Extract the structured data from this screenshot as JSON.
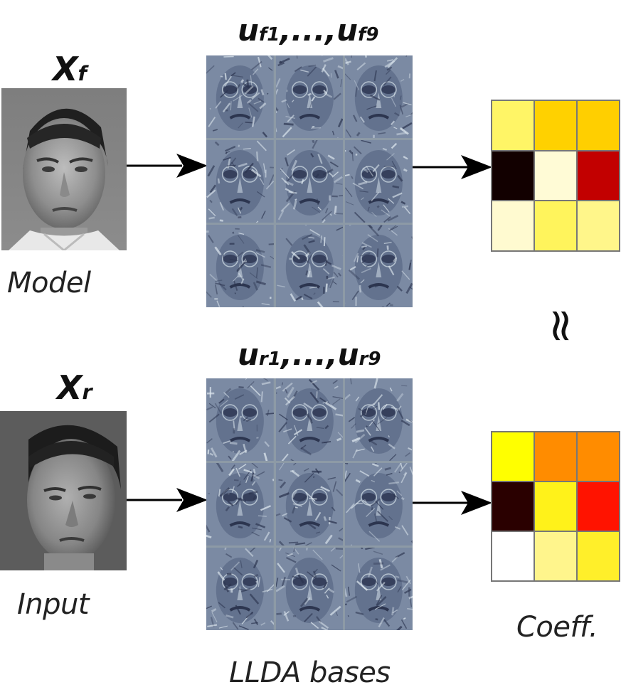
{
  "model": {
    "var_main": "X",
    "var_sub": "f",
    "caption": "Model",
    "bases_label_left": "u",
    "bases_label_left_sub": "f1",
    "bases_label_mid": ",...,",
    "bases_label_right": "u",
    "bases_label_right_sub": "f9",
    "coeff_colors": [
      "#fff566",
      "#ffd100",
      "#ffcf00",
      "#120000",
      "#fffbd6",
      "#c20000",
      "#fffad0",
      "#fff45c",
      "#fff68a"
    ]
  },
  "input": {
    "var_main": "X",
    "var_sub": "r",
    "caption": "Input",
    "bases_label_left": "u",
    "bases_label_left_sub": "r1",
    "bases_label_mid": ",...,",
    "bases_label_right": "u",
    "bases_label_right_sub": "r9",
    "coeff_colors": [
      "#ffff00",
      "#ff8c00",
      "#ff8c00",
      "#2a0000",
      "#fff21a",
      "#ff1300",
      "#ffffff",
      "#fff58c",
      "#ffef2a"
    ]
  },
  "approx_symbol": "≈",
  "bases_caption": "LLDA bases",
  "coeff_caption": "Coeff."
}
